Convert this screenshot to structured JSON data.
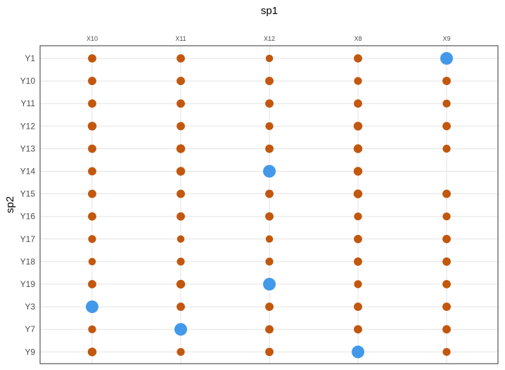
{
  "chart_data": {
    "type": "scatter",
    "title": "",
    "xlabel": "sp1",
    "ylabel": "sp2",
    "x_categories": [
      "X10",
      "X11",
      "X12",
      "X8",
      "X9"
    ],
    "y_categories": [
      "Y1",
      "Y10",
      "Y11",
      "Y12",
      "Y13",
      "Y14",
      "Y15",
      "Y16",
      "Y17",
      "Y18",
      "Y19",
      "Y3",
      "Y7",
      "Y9"
    ],
    "x_axis_position": "top",
    "grid": true,
    "legend": "none",
    "colors": {
      "small": "#c2570e",
      "large": "#4299e9"
    },
    "size_scale_max": 1,
    "points": [
      {
        "x": "X10",
        "y": "Y1",
        "size": 0.3,
        "highlight": false
      },
      {
        "x": "X11",
        "y": "Y1",
        "size": 0.3,
        "highlight": false
      },
      {
        "x": "X12",
        "y": "Y1",
        "size": 0.2,
        "highlight": false
      },
      {
        "x": "X8",
        "y": "Y1",
        "size": 0.3,
        "highlight": false
      },
      {
        "x": "X9",
        "y": "Y1",
        "size": 1.0,
        "highlight": true
      },
      {
        "x": "X10",
        "y": "Y10",
        "size": 0.3,
        "highlight": false
      },
      {
        "x": "X11",
        "y": "Y10",
        "size": 0.3,
        "highlight": false
      },
      {
        "x": "X12",
        "y": "Y10",
        "size": 0.3,
        "highlight": false
      },
      {
        "x": "X8",
        "y": "Y10",
        "size": 0.25,
        "highlight": false
      },
      {
        "x": "X9",
        "y": "Y10",
        "size": 0.3,
        "highlight": false
      },
      {
        "x": "X10",
        "y": "Y11",
        "size": 0.3,
        "highlight": false
      },
      {
        "x": "X11",
        "y": "Y11",
        "size": 0.3,
        "highlight": false
      },
      {
        "x": "X12",
        "y": "Y11",
        "size": 0.3,
        "highlight": false
      },
      {
        "x": "X8",
        "y": "Y11",
        "size": 0.3,
        "highlight": false
      },
      {
        "x": "X9",
        "y": "Y11",
        "size": 0.25,
        "highlight": false
      },
      {
        "x": "X10",
        "y": "Y12",
        "size": 0.35,
        "highlight": false
      },
      {
        "x": "X11",
        "y": "Y12",
        "size": 0.3,
        "highlight": false
      },
      {
        "x": "X12",
        "y": "Y12",
        "size": 0.25,
        "highlight": false
      },
      {
        "x": "X8",
        "y": "Y12",
        "size": 0.35,
        "highlight": false
      },
      {
        "x": "X9",
        "y": "Y12",
        "size": 0.3,
        "highlight": false
      },
      {
        "x": "X10",
        "y": "Y13",
        "size": 0.3,
        "highlight": false
      },
      {
        "x": "X11",
        "y": "Y13",
        "size": 0.35,
        "highlight": false
      },
      {
        "x": "X12",
        "y": "Y13",
        "size": 0.3,
        "highlight": false
      },
      {
        "x": "X8",
        "y": "Y13",
        "size": 0.35,
        "highlight": false
      },
      {
        "x": "X9",
        "y": "Y13",
        "size": 0.25,
        "highlight": false
      },
      {
        "x": "X10",
        "y": "Y14",
        "size": 0.3,
        "highlight": false
      },
      {
        "x": "X11",
        "y": "Y14",
        "size": 0.35,
        "highlight": false
      },
      {
        "x": "X12",
        "y": "Y14",
        "size": 1.0,
        "highlight": true
      },
      {
        "x": "X8",
        "y": "Y14",
        "size": 0.35,
        "highlight": false
      },
      {
        "x": "X10",
        "y": "Y15",
        "size": 0.3,
        "highlight": false
      },
      {
        "x": "X11",
        "y": "Y15",
        "size": 0.3,
        "highlight": false
      },
      {
        "x": "X12",
        "y": "Y15",
        "size": 0.3,
        "highlight": false
      },
      {
        "x": "X8",
        "y": "Y15",
        "size": 0.35,
        "highlight": false
      },
      {
        "x": "X9",
        "y": "Y15",
        "size": 0.3,
        "highlight": false
      },
      {
        "x": "X10",
        "y": "Y16",
        "size": 0.3,
        "highlight": false
      },
      {
        "x": "X11",
        "y": "Y16",
        "size": 0.3,
        "highlight": false
      },
      {
        "x": "X12",
        "y": "Y16",
        "size": 0.3,
        "highlight": false
      },
      {
        "x": "X8",
        "y": "Y16",
        "size": 0.25,
        "highlight": false
      },
      {
        "x": "X9",
        "y": "Y16",
        "size": 0.25,
        "highlight": false
      },
      {
        "x": "X10",
        "y": "Y17",
        "size": 0.25,
        "highlight": false
      },
      {
        "x": "X11",
        "y": "Y17",
        "size": 0.2,
        "highlight": false
      },
      {
        "x": "X12",
        "y": "Y17",
        "size": 0.2,
        "highlight": false
      },
      {
        "x": "X8",
        "y": "Y17",
        "size": 0.3,
        "highlight": false
      },
      {
        "x": "X9",
        "y": "Y17",
        "size": 0.3,
        "highlight": false
      },
      {
        "x": "X10",
        "y": "Y18",
        "size": 0.2,
        "highlight": false
      },
      {
        "x": "X11",
        "y": "Y18",
        "size": 0.25,
        "highlight": false
      },
      {
        "x": "X12",
        "y": "Y18",
        "size": 0.25,
        "highlight": false
      },
      {
        "x": "X8",
        "y": "Y18",
        "size": 0.3,
        "highlight": false
      },
      {
        "x": "X9",
        "y": "Y18",
        "size": 0.3,
        "highlight": false
      },
      {
        "x": "X10",
        "y": "Y19",
        "size": 0.3,
        "highlight": false
      },
      {
        "x": "X11",
        "y": "Y19",
        "size": 0.35,
        "highlight": false
      },
      {
        "x": "X12",
        "y": "Y19",
        "size": 1.0,
        "highlight": true
      },
      {
        "x": "X8",
        "y": "Y19",
        "size": 0.25,
        "highlight": false
      },
      {
        "x": "X9",
        "y": "Y19",
        "size": 0.3,
        "highlight": false
      },
      {
        "x": "X10",
        "y": "Y3",
        "size": 1.0,
        "highlight": true
      },
      {
        "x": "X11",
        "y": "Y3",
        "size": 0.3,
        "highlight": false
      },
      {
        "x": "X12",
        "y": "Y3",
        "size": 0.3,
        "highlight": false
      },
      {
        "x": "X8",
        "y": "Y3",
        "size": 0.3,
        "highlight": false
      },
      {
        "x": "X9",
        "y": "Y3",
        "size": 0.3,
        "highlight": false
      },
      {
        "x": "X10",
        "y": "Y7",
        "size": 0.25,
        "highlight": false
      },
      {
        "x": "X11",
        "y": "Y7",
        "size": 1.0,
        "highlight": true
      },
      {
        "x": "X12",
        "y": "Y7",
        "size": 0.3,
        "highlight": false
      },
      {
        "x": "X8",
        "y": "Y7",
        "size": 0.3,
        "highlight": false
      },
      {
        "x": "X9",
        "y": "Y7",
        "size": 0.3,
        "highlight": false
      },
      {
        "x": "X10",
        "y": "Y9",
        "size": 0.35,
        "highlight": false
      },
      {
        "x": "X11",
        "y": "Y9",
        "size": 0.25,
        "highlight": false
      },
      {
        "x": "X12",
        "y": "Y9",
        "size": 0.3,
        "highlight": false
      },
      {
        "x": "X8",
        "y": "Y9",
        "size": 1.0,
        "highlight": true
      },
      {
        "x": "X9",
        "y": "Y9",
        "size": 0.25,
        "highlight": false
      }
    ]
  }
}
